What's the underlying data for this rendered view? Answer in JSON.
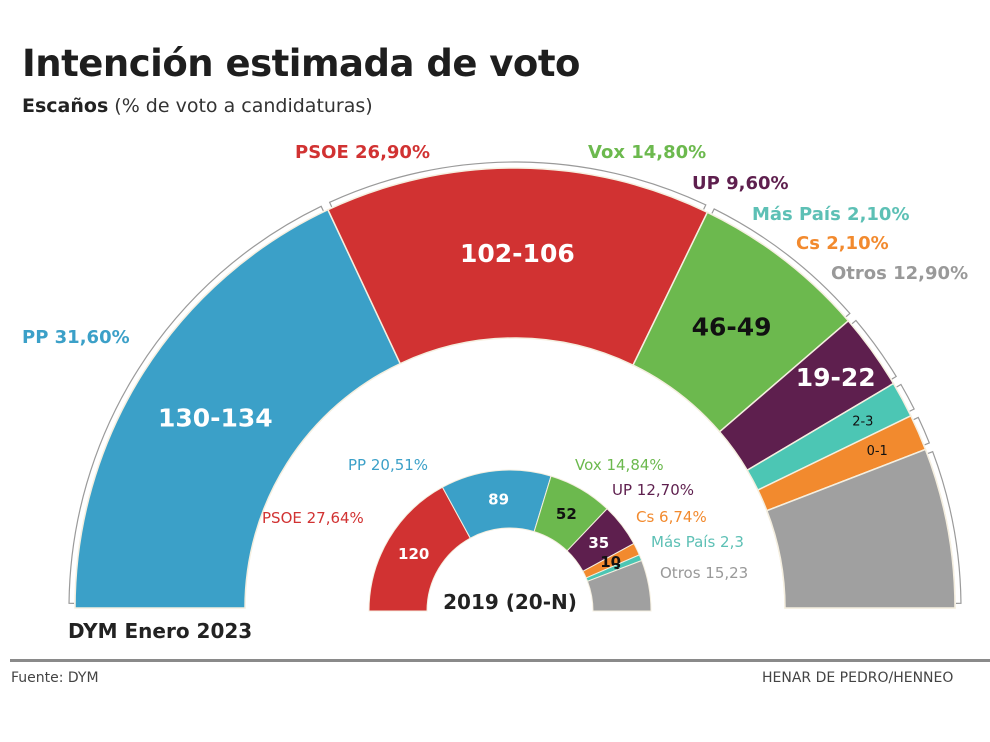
{
  "header": {
    "title": "Intención estimada de voto",
    "subtitle_bold": "Escaños",
    "subtitle_rest": " (% de voto a candidaturas)"
  },
  "footer": {
    "source": "Fuente: DYM",
    "credit": "HENAR DE PEDRO/HENNEO"
  },
  "chart_data": [
    {
      "type": "pie",
      "subtype": "parliament-semicircle",
      "title": "DYM Enero 2023",
      "total_seats": 350,
      "categories": [
        "PP",
        "PSOE",
        "Vox",
        "UP",
        "Más País",
        "Cs",
        "Otros"
      ],
      "series": [
        {
          "name": "PP",
          "vote_pct": 31.6,
          "vote_label": "PP 31,60%",
          "seats_label": "130-134",
          "seats_min": 130,
          "seats_max": 134,
          "color": "#3ba0c8",
          "text_color": "#ffffff",
          "label_color": "#3ba0c8"
        },
        {
          "name": "PSOE",
          "vote_pct": 26.9,
          "vote_label": "PSOE 26,90%",
          "seats_label": "102-106",
          "seats_min": 102,
          "seats_max": 106,
          "color": "#d13232",
          "text_color": "#ffffff",
          "label_color": "#d13232"
        },
        {
          "name": "Vox",
          "vote_pct": 14.8,
          "vote_label": "Vox 14,80%",
          "seats_label": "46-49",
          "seats_min": 46,
          "seats_max": 49,
          "color": "#6cb94e",
          "text_color": "#111111",
          "label_color": "#6cb94e"
        },
        {
          "name": "UP",
          "vote_pct": 9.6,
          "vote_label": "UP 9,60%",
          "seats_label": "19-22",
          "seats_min": 19,
          "seats_max": 22,
          "color": "#5e1f4e",
          "text_color": "#ffffff",
          "label_color": "#5e1f4e"
        },
        {
          "name": "Más País",
          "vote_pct": 2.1,
          "vote_label": "Más País 2,10%",
          "seats_label": "2-3",
          "seats_min": 2,
          "seats_max": 3,
          "color": "#4cc6b4",
          "text_color": "#111111",
          "label_color": "#5dc0b5"
        },
        {
          "name": "Cs",
          "vote_pct": 2.1,
          "vote_label": "Cs 2,10%",
          "seats_label": "0-1",
          "seats_min": 0,
          "seats_max": 1,
          "color": "#f28a2e",
          "text_color": "#111111",
          "label_color": "#f28a2e"
        },
        {
          "name": "Otros",
          "vote_pct": 12.9,
          "vote_label": "Otros 12,90%",
          "seats_label": "",
          "seats_min": null,
          "seats_max": null,
          "color": "#a0a0a0",
          "text_color": "#ffffff",
          "label_color": "#999999"
        }
      ]
    },
    {
      "type": "pie",
      "subtype": "parliament-semicircle",
      "title": "2019 (20-N)",
      "total_seats": 350,
      "categories": [
        "PSOE",
        "PP",
        "Vox",
        "UP",
        "Cs",
        "Más País",
        "Otros"
      ],
      "series": [
        {
          "name": "PSOE",
          "vote_pct": 27.64,
          "vote_label": "PSOE 27,64%",
          "seats": 120,
          "seats_label": "120",
          "color": "#d13232",
          "text_color": "#ffffff",
          "label_color": "#d13232"
        },
        {
          "name": "PP",
          "vote_pct": 20.51,
          "vote_label": "PP 20,51%",
          "seats": 89,
          "seats_label": "89",
          "color": "#3ba0c8",
          "text_color": "#ffffff",
          "label_color": "#3ba0c8"
        },
        {
          "name": "Vox",
          "vote_pct": 14.84,
          "vote_label": "Vox 14,84%",
          "seats": 52,
          "seats_label": "52",
          "color": "#6cb94e",
          "text_color": "#111111",
          "label_color": "#6cb94e"
        },
        {
          "name": "UP",
          "vote_pct": 12.7,
          "vote_label": "UP 12,70%",
          "seats": 35,
          "seats_label": "35",
          "color": "#5e1f4e",
          "text_color": "#ffffff",
          "label_color": "#5e1f4e"
        },
        {
          "name": "Cs",
          "vote_pct": 6.74,
          "vote_label": "Cs 6,74%",
          "seats": 10,
          "seats_label": "10",
          "color": "#f28a2e",
          "text_color": "#111111",
          "label_color": "#f28a2e"
        },
        {
          "name": "Más País",
          "vote_pct": 2.3,
          "vote_label": "Más País 2,3",
          "seats": 3,
          "seats_label": "3",
          "color": "#4cc6b4",
          "text_color": "#111111",
          "label_color": "#5dc0b5"
        },
        {
          "name": "Otros",
          "vote_pct": 15.23,
          "vote_label": "Otros 15,23",
          "seats": 41,
          "seats_label": "",
          "color": "#a0a0a0",
          "text_color": "#ffffff",
          "label_color": "#999999"
        }
      ]
    }
  ]
}
